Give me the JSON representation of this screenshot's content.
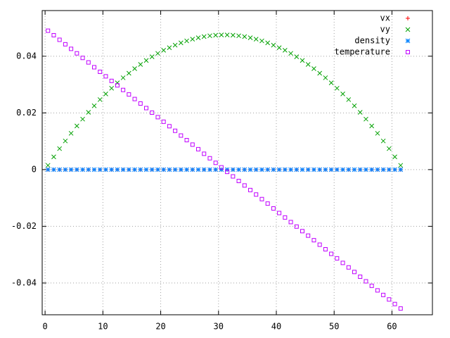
{
  "chart_data": {
    "type": "scatter",
    "x": [
      0.5,
      1.5,
      2.5,
      3.5,
      4.5,
      5.5,
      6.5,
      7.5,
      8.5,
      9.5,
      10.5,
      11.5,
      12.5,
      13.5,
      14.5,
      15.5,
      16.5,
      17.5,
      18.5,
      19.5,
      20.5,
      21.5,
      22.5,
      23.5,
      24.5,
      25.5,
      26.5,
      27.5,
      28.5,
      29.5,
      30.5,
      31.5,
      32.5,
      33.5,
      34.5,
      35.5,
      36.5,
      37.5,
      38.5,
      39.5,
      40.5,
      41.5,
      42.5,
      43.5,
      44.5,
      45.5,
      46.5,
      47.5,
      48.5,
      49.5,
      50.5,
      51.5,
      52.5,
      53.5,
      54.5,
      55.5,
      56.5,
      57.5,
      58.5,
      59.5,
      60.5,
      61.5
    ],
    "series": [
      {
        "name": "vx",
        "color": "#ff0000",
        "marker": "plus",
        "values": [
          0,
          0,
          0,
          0,
          0,
          0,
          0,
          0,
          0,
          0,
          0,
          0,
          0,
          0,
          0,
          0,
          0,
          0,
          0,
          0,
          0,
          0,
          0,
          0,
          0,
          0,
          0,
          0,
          0,
          0,
          0,
          0,
          0,
          0,
          0,
          0,
          0,
          0,
          0,
          0,
          0,
          0,
          0,
          0,
          0,
          0,
          0,
          0,
          0,
          0,
          0,
          0,
          0,
          0,
          0,
          0,
          0,
          0,
          0,
          0,
          0,
          0
        ]
      },
      {
        "name": "vy",
        "color": "#00a000",
        "marker": "cross",
        "values": [
          0.0015,
          0.0045,
          0.0074,
          0.0101,
          0.0128,
          0.0154,
          0.0178,
          0.0202,
          0.0225,
          0.0247,
          0.0267,
          0.0287,
          0.0306,
          0.0324,
          0.034,
          0.0356,
          0.0371,
          0.0385,
          0.0398,
          0.041,
          0.0421,
          0.043,
          0.0439,
          0.0447,
          0.0454,
          0.046,
          0.0465,
          0.0469,
          0.0472,
          0.0474,
          0.0475,
          0.0475,
          0.0474,
          0.0472,
          0.0469,
          0.0465,
          0.046,
          0.0454,
          0.0447,
          0.0439,
          0.043,
          0.0421,
          0.041,
          0.0398,
          0.0385,
          0.0371,
          0.0356,
          0.034,
          0.0324,
          0.0306,
          0.0287,
          0.0267,
          0.0247,
          0.0225,
          0.0202,
          0.0178,
          0.0154,
          0.0128,
          0.0101,
          0.0074,
          0.0045,
          0.0015
        ]
      },
      {
        "name": "density",
        "color": "#0080ff",
        "marker": "star",
        "values": [
          0,
          0,
          0,
          0,
          0,
          0,
          0,
          0,
          0,
          0,
          0,
          0,
          0,
          0,
          0,
          0,
          0,
          0,
          0,
          0,
          0,
          0,
          0,
          0,
          0,
          0,
          0,
          0,
          0,
          0,
          0,
          0,
          0,
          0,
          0,
          0,
          0,
          0,
          0,
          0,
          0,
          0,
          0,
          0,
          0,
          0,
          0,
          0,
          0,
          0,
          0,
          0,
          0,
          0,
          0,
          0,
          0,
          0,
          0,
          0,
          0,
          0
        ]
      },
      {
        "name": "temperature",
        "color": "#c000ff",
        "marker": "square",
        "values": [
          0.049,
          0.0474,
          0.0458,
          0.0442,
          0.0426,
          0.041,
          0.0394,
          0.0378,
          0.0361,
          0.0345,
          0.0329,
          0.0313,
          0.0297,
          0.0281,
          0.0265,
          0.0249,
          0.0233,
          0.0217,
          0.0201,
          0.0185,
          0.0169,
          0.0153,
          0.0137,
          0.012,
          0.0104,
          0.0088,
          0.0072,
          0.0056,
          0.004,
          0.0024,
          0.0008,
          -0.0008,
          -0.0024,
          -0.004,
          -0.0056,
          -0.0072,
          -0.0088,
          -0.0104,
          -0.012,
          -0.0137,
          -0.0153,
          -0.0169,
          -0.0185,
          -0.0201,
          -0.0217,
          -0.0233,
          -0.0249,
          -0.0265,
          -0.0281,
          -0.0297,
          -0.0313,
          -0.0329,
          -0.0345,
          -0.0361,
          -0.0378,
          -0.0394,
          -0.041,
          -0.0426,
          -0.0442,
          -0.0458,
          -0.0474,
          -0.049
        ]
      }
    ],
    "xlim": [
      -0.5,
      67
    ],
    "ylim": [
      -0.0512,
      0.0561
    ],
    "xticks": [
      0,
      10,
      20,
      30,
      40,
      50,
      60
    ],
    "yticks": [
      -0.04,
      -0.02,
      0,
      0.02,
      0.04
    ],
    "grid": true,
    "legend": "top-right"
  }
}
